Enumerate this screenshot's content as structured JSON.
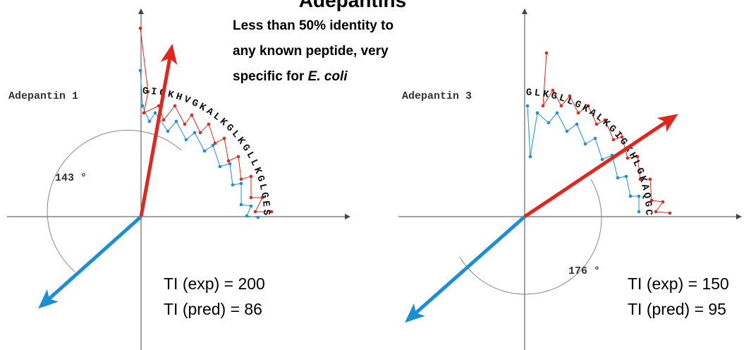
{
  "header": {
    "title": "Adepantins",
    "subtitle_line1": "Less than 50% identity to",
    "subtitle_line2": "any known peptide, very",
    "subtitle_line3_prefix": "specific for ",
    "subtitle_line3_italic": "E. coli"
  },
  "colors": {
    "red": "#e0261d",
    "blue": "#1b8fd6",
    "axis": "#444444",
    "arc": "#888888"
  },
  "panels": [
    {
      "name": "Adepantin 1",
      "sequence": "GIGKHVGKALKGLKGLLKGLGES",
      "angle_label": "143 °",
      "ti_exp": "TI (exp) = 200",
      "ti_pred": "TI (pred) = 86"
    },
    {
      "name": "Adepantin 3",
      "sequence": "GLKGLLGKALKGIGKHLGKAQGC",
      "angle_label": "176 °",
      "ti_exp": "TI (exp) = 150",
      "ti_pred": "TI (pred) = 95"
    }
  ]
}
